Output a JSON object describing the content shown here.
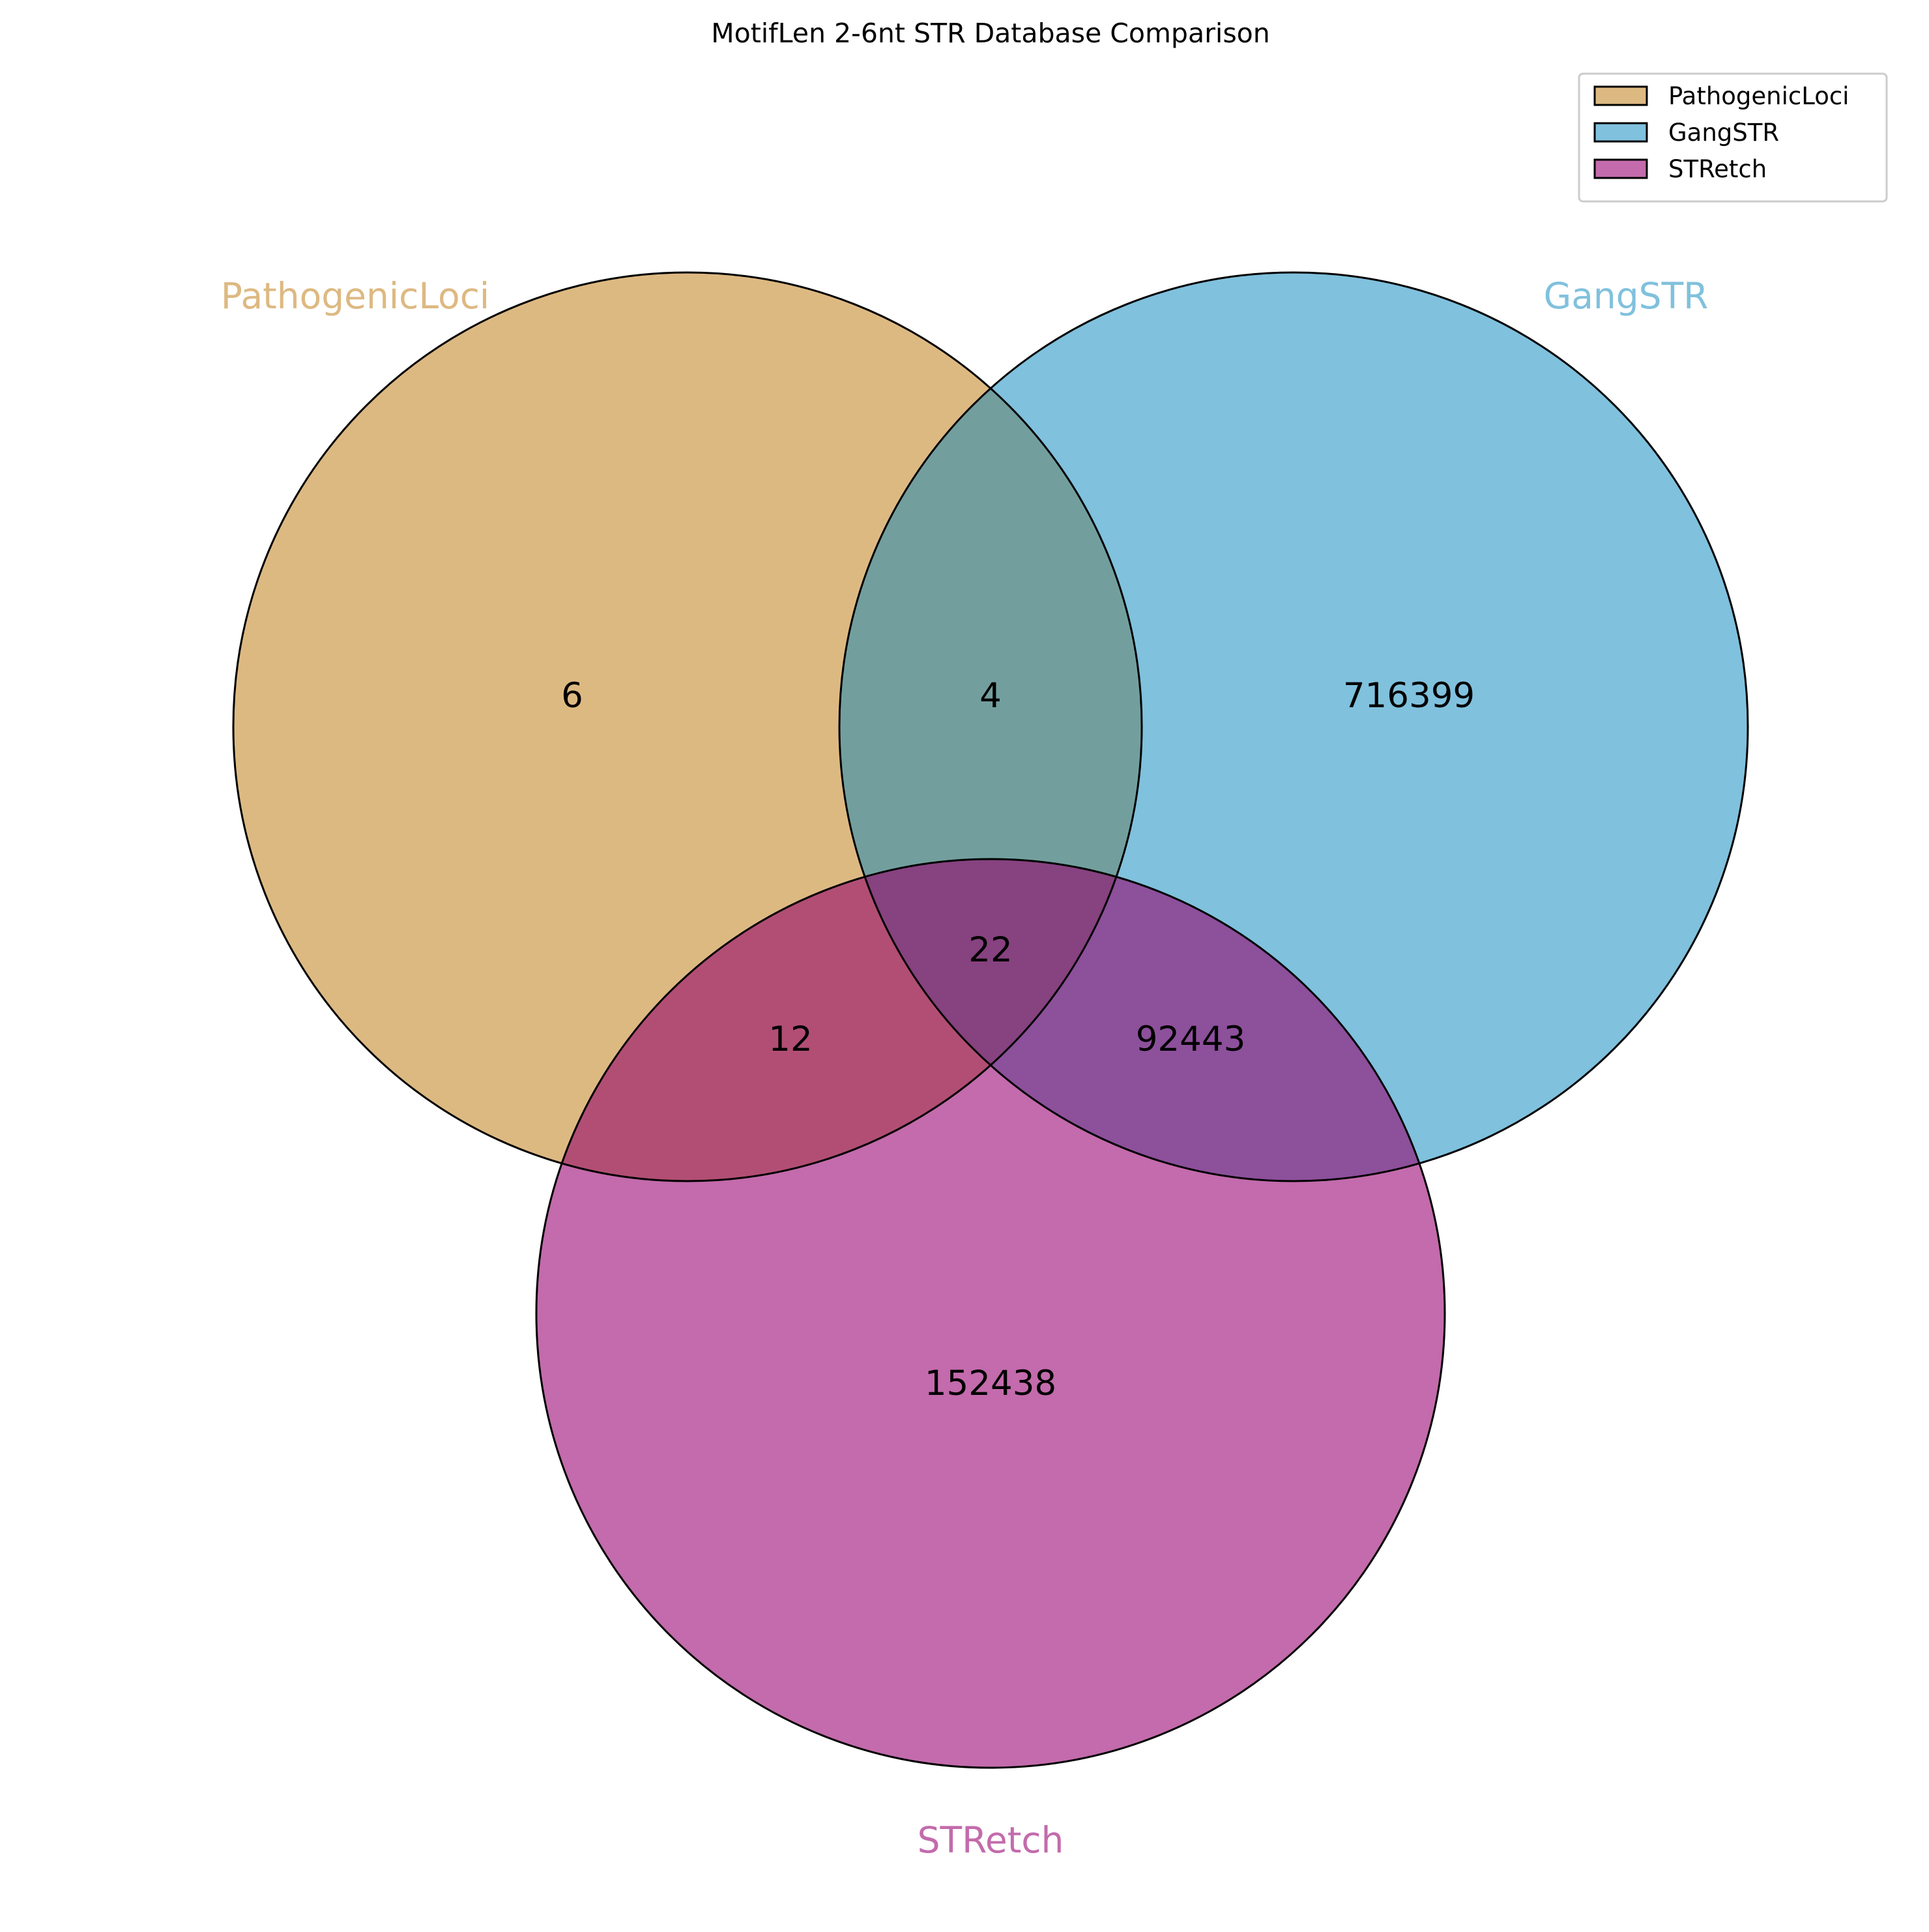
{
  "title": "MotifLen 2-6nt STR Database Comparison",
  "sets": [
    {
      "name": "PathogenicLoci",
      "color": "#DDB982"
    },
    {
      "name": "GangSTR",
      "color": "#80C1DD"
    },
    {
      "name": "STRetch",
      "color": "#C36BAC"
    }
  ],
  "regions": {
    "pathogenic_only": "6",
    "pathogenic_gangstr": "4",
    "gangstr_only": "716399",
    "all_three": "22",
    "pathogenic_stretch": "12",
    "gangstr_stretch": "92443",
    "stretch_only": "152438"
  },
  "legend": {
    "placement": "top-right",
    "items": [
      "PathogenicLoci",
      "GangSTR",
      "STRetch"
    ]
  }
}
